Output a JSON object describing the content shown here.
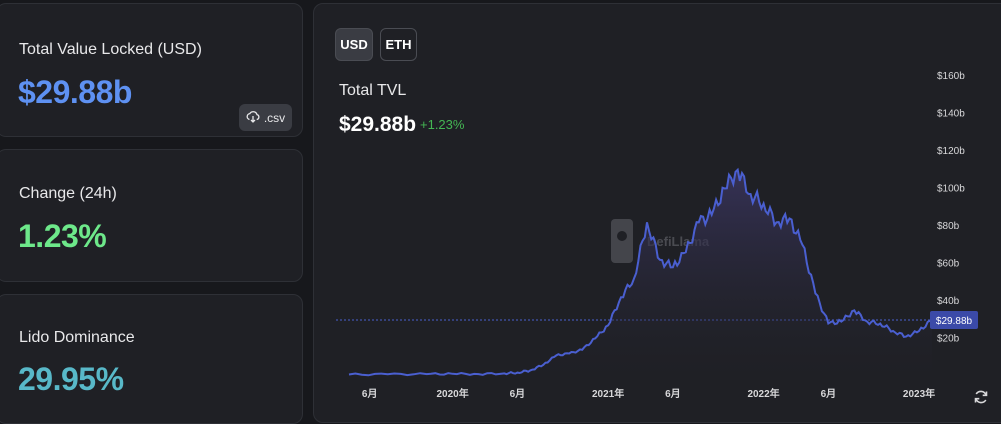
{
  "cards": {
    "tvl": {
      "label": "Total Value Locked (USD)",
      "value": "$29.88b",
      "csv_label": ".csv",
      "value_color": "#5e91f2"
    },
    "change": {
      "label": "Change (24h)",
      "value": "1.23%",
      "value_color": "#6de88a"
    },
    "dominance": {
      "label": "Lido Dominance",
      "value": "29.95%",
      "value_color": "#58b8c8"
    }
  },
  "chart": {
    "toggles": [
      "USD",
      "ETH"
    ],
    "selected_toggle": "USD",
    "title": "Total TVL",
    "value": "$29.88b",
    "change": "+1.23%",
    "watermark": "DefiLlama",
    "current_label": "$29.88b",
    "colors": {
      "line": "#4a5fd0",
      "fill_top": "#3a3560",
      "fill_bottom": "#1f2025",
      "current_badge": "#3b4aa8"
    }
  },
  "chart_data": {
    "type": "area",
    "y_ticks": [
      "$160b",
      "$140b",
      "$120b",
      "$100b",
      "$80b",
      "$60b",
      "$40b",
      "$20b"
    ],
    "y_tick_values": [
      160,
      140,
      120,
      100,
      80,
      60,
      40,
      20
    ],
    "ylim": [
      0,
      160
    ],
    "x_ticks": [
      "6月",
      "2020年",
      "6月",
      "2021年",
      "6月",
      "2022年",
      "6月",
      "2023年"
    ],
    "x_tick_values": [
      "2019-06",
      "2020-01",
      "2020-06",
      "2021-01",
      "2021-06",
      "2022-01",
      "2022-06",
      "2023-01"
    ],
    "current_value": 29.88,
    "series": [
      {
        "x": [
          "2019-05",
          "2019-08",
          "2019-11",
          "2020-01",
          "2020-03",
          "2020-05",
          "2020-06",
          "2020-07",
          "2020-08",
          "2020-09",
          "2020-10",
          "2020-11",
          "2020-12",
          "2021-01",
          "2021-02",
          "2021-03",
          "2021-04",
          "2021-05",
          "2021-06",
          "2021-07",
          "2021-08",
          "2021-09",
          "2021-10",
          "2021-11",
          "2021-12",
          "2022-01",
          "2022-02",
          "2022-03",
          "2022-04",
          "2022-05",
          "2022-06",
          "2022-07",
          "2022-08",
          "2022-09",
          "2022-10",
          "2022-11",
          "2022-12",
          "2023-01",
          "2023-02"
        ],
        "values": [
          0.8,
          0.9,
          1.0,
          1.2,
          1.0,
          1.4,
          1.8,
          3.0,
          6.0,
          11.0,
          12.0,
          14.0,
          20.0,
          27.0,
          42.0,
          52.0,
          82.0,
          62.0,
          58.0,
          66.0,
          82.0,
          86.0,
          100.0,
          110.0,
          97.0,
          92.0,
          82.0,
          84.0,
          70.0,
          44.0,
          28.0,
          29.0,
          35.0,
          29.0,
          28.0,
          24.0,
          21.0,
          24.0,
          29.88
        ]
      }
    ]
  }
}
